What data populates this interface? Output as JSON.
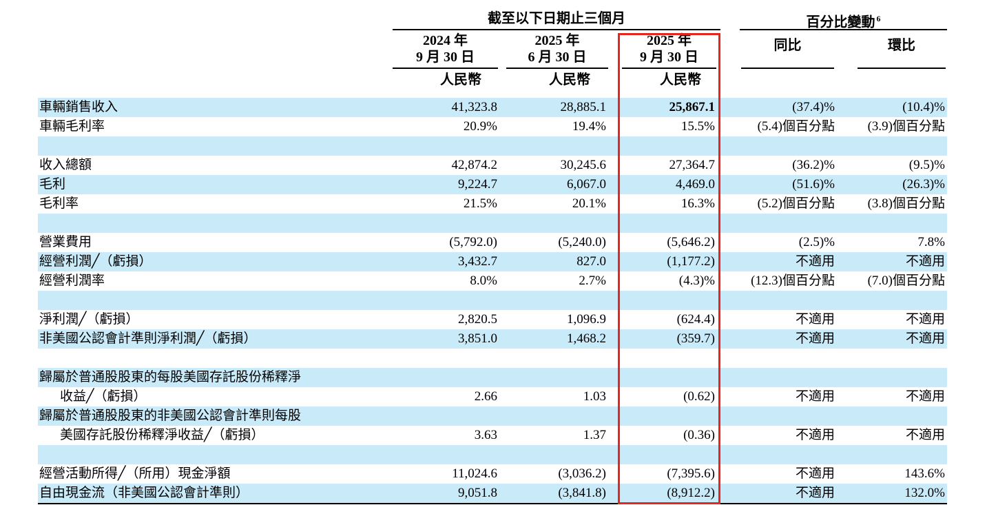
{
  "colors": {
    "row_stripe": "#c9eaf9",
    "highlight_box": "#e5261f",
    "rule": "#000000"
  },
  "table": {
    "header": {
      "period_group": "截至以下日期止三個月",
      "change_group": "百分比變動",
      "change_group_footnote": "6",
      "columns": [
        {
          "line1": "2024 年",
          "line2": "9 月 30 日",
          "unit": "人民幣"
        },
        {
          "line1": "2025 年",
          "line2": "6 月 30 日",
          "unit": "人民幣"
        },
        {
          "line1": "2025 年",
          "line2": "9 月 30 日",
          "unit": "人民幣"
        },
        {
          "label": "同比"
        },
        {
          "label": "環比"
        }
      ]
    },
    "rows": [
      {
        "label": "車輛銷售收入",
        "values": [
          "41,323.8",
          "28,885.1",
          "25,867.1",
          "(37.4)%",
          "(10.4)%"
        ],
        "bold": [
          "c3"
        ]
      },
      {
        "label": "車輛毛利率",
        "values": [
          "20.9%",
          "19.4%",
          "15.5%",
          "(5.4)個百分點",
          "(3.9)個百分點"
        ]
      },
      {
        "label": "",
        "values": [
          "",
          "",
          "",
          "",
          ""
        ]
      },
      {
        "label": "收入總額",
        "values": [
          "42,874.2",
          "30,245.6",
          "27,364.7",
          "(36.2)%",
          "(9.5)%"
        ]
      },
      {
        "label": "毛利",
        "values": [
          "9,224.7",
          "6,067.0",
          "4,469.0",
          "(51.6)%",
          "(26.3)%"
        ]
      },
      {
        "label": "毛利率",
        "values": [
          "21.5%",
          "20.1%",
          "16.3%",
          "(5.2)個百分點",
          "(3.8)個百分點"
        ]
      },
      {
        "label": "",
        "values": [
          "",
          "",
          "",
          "",
          ""
        ]
      },
      {
        "label": "營業費用",
        "values": [
          "(5,792.0)",
          "(5,240.0)",
          "(5,646.2)",
          "(2.5)%",
          "7.8%"
        ]
      },
      {
        "label": "經營利潤╱（虧損）",
        "values": [
          "3,432.7",
          "827.0",
          "(1,177.2)",
          "不適用",
          "不適用"
        ]
      },
      {
        "label": "經營利潤率",
        "values": [
          "8.0%",
          "2.7%",
          "(4.3)%",
          "(12.3)個百分點",
          "(7.0)個百分點"
        ]
      },
      {
        "label": "",
        "values": [
          "",
          "",
          "",
          "",
          ""
        ]
      },
      {
        "label": "淨利潤╱（虧損）",
        "values": [
          "2,820.5",
          "1,096.9",
          "(624.4)",
          "不適用",
          "不適用"
        ]
      },
      {
        "label": "非美國公認會計準則淨利潤╱（虧損）",
        "values": [
          "3,851.0",
          "1,468.2",
          "(359.7)",
          "不適用",
          "不適用"
        ]
      },
      {
        "label": "",
        "values": [
          "",
          "",
          "",
          "",
          ""
        ]
      },
      {
        "label": "歸屬於普通股股東的每股美國存託股份稀釋淨",
        "values": [
          "",
          "",
          "",
          "",
          ""
        ]
      },
      {
        "label": "收益╱（虧損）",
        "indent": true,
        "values": [
          "2.66",
          "1.03",
          "(0.62)",
          "不適用",
          "不適用"
        ]
      },
      {
        "label": "歸屬於普通股股東的非美國公認會計準則每股",
        "values": [
          "",
          "",
          "",
          "",
          ""
        ]
      },
      {
        "label": "美國存託股份稀釋淨收益╱（虧損）",
        "indent": true,
        "values": [
          "3.63",
          "1.37",
          "(0.36)",
          "不適用",
          "不適用"
        ]
      },
      {
        "label": "",
        "values": [
          "",
          "",
          "",
          "",
          ""
        ]
      },
      {
        "label": "經營活動所得╱（所用）現金淨額",
        "values": [
          "11,024.6",
          "(3,036.2)",
          "(7,395.6)",
          "不適用",
          "143.6%"
        ]
      },
      {
        "label": "自由現金流（非美國公認會計準則）",
        "values": [
          "9,051.8",
          "(3,841.8)",
          "(8,912.2)",
          "不適用",
          "132.0%"
        ]
      }
    ]
  }
}
